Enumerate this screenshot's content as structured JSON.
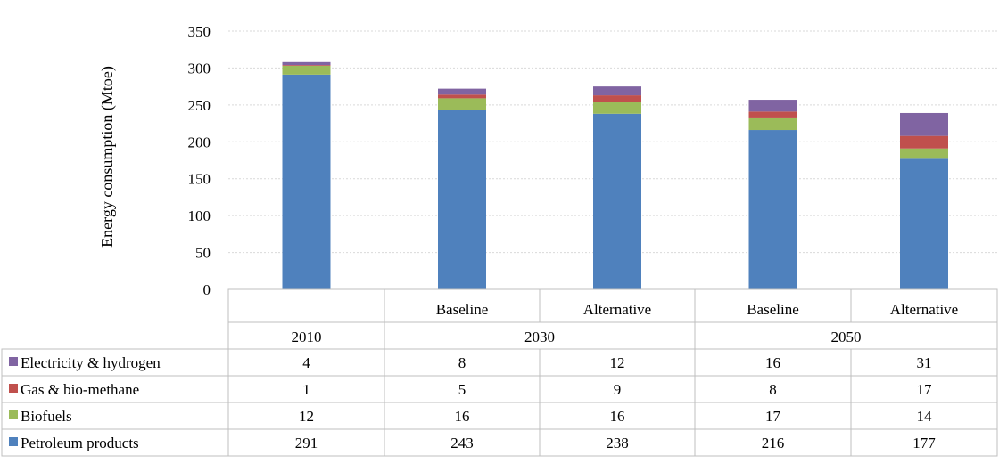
{
  "chart_data": {
    "type": "bar",
    "stacked": true,
    "ylabel": "Energy consumption (Mtoe)",
    "ylim": [
      0,
      350
    ],
    "yticks": [
      0,
      50,
      100,
      150,
      200,
      250,
      300,
      350
    ],
    "grid": true,
    "categories": [
      {
        "scenario": "",
        "year": "2010"
      },
      {
        "scenario": "Baseline",
        "year": "2030"
      },
      {
        "scenario": "Alternative",
        "year": "2030"
      },
      {
        "scenario": "Baseline",
        "year": "2050"
      },
      {
        "scenario": "Alternative",
        "year": "2050"
      }
    ],
    "year_groups": [
      {
        "label": "2010",
        "span": [
          0,
          0
        ]
      },
      {
        "label": "2030",
        "span": [
          1,
          2
        ]
      },
      {
        "label": "2050",
        "span": [
          3,
          4
        ]
      }
    ],
    "series": [
      {
        "name": "Petroleum products",
        "color": "#4f81bd",
        "values": [
          291,
          243,
          238,
          216,
          177
        ]
      },
      {
        "name": "Biofuels",
        "color": "#9bbb59",
        "values": [
          12,
          16,
          16,
          17,
          14
        ]
      },
      {
        "name": "Gas & bio-methane",
        "color": "#c0504d",
        "values": [
          1,
          5,
          9,
          8,
          17
        ]
      },
      {
        "name": "Electricity & hydrogen",
        "color": "#8064a2",
        "values": [
          4,
          8,
          12,
          16,
          31
        ]
      }
    ],
    "table_row_order": [
      "Electricity & hydrogen",
      "Gas & bio-methane",
      "Biofuels",
      "Petroleum products"
    ]
  }
}
